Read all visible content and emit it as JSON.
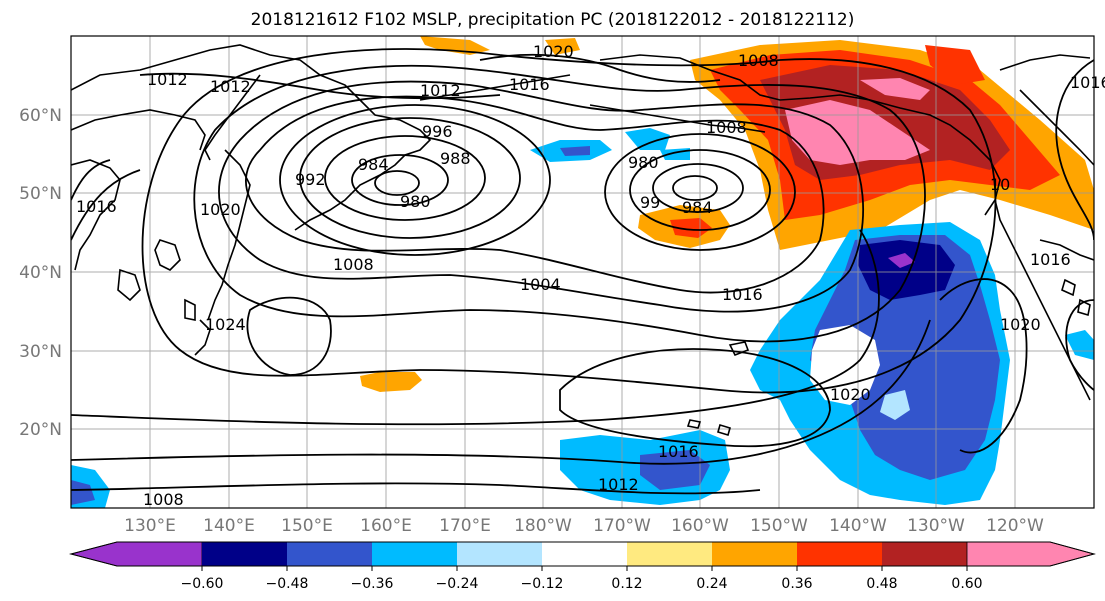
{
  "title": "2018121612 F102 MSLP, precipitation PC (2018122012 - 2018122112)",
  "lat_labels": [
    "60°N",
    "50°N",
    "40°N",
    "30°N",
    "20°N"
  ],
  "lon_labels": [
    "130°E",
    "140°E",
    "150°E",
    "160°E",
    "170°E",
    "180°W",
    "170°W",
    "160°W",
    "150°W",
    "140°W",
    "130°W",
    "120°W"
  ],
  "contour_labels": {
    "c1020a": "1020",
    "c1016a": "1016",
    "c1012a": "1012",
    "c1012b": "1012",
    "c1008a": "1008",
    "c996": "996",
    "c984a": "984",
    "c988": "988",
    "c980a": "980",
    "c992": "992",
    "c1020b": "1020",
    "c1016b": "1016",
    "c1008b": "1008",
    "c1004": "1004",
    "c1016c": "1016",
    "c1008c": "1008",
    "c984b": "984",
    "c99": "99",
    "c980b": "980",
    "c1020c": "1020",
    "c1016d": "1016",
    "c1020d": "1020",
    "c1016e": "1016",
    "c1012c": "1012",
    "c1008d": "1008",
    "c10": "10",
    "c1016f": "1016",
    "c1024": "1024",
    "c1012d": "1012"
  },
  "colorbar": {
    "colors": [
      "#9933cc",
      "#000088",
      "#3355cc",
      "#00bbff",
      "#b3e5ff",
      "#ffffff",
      "#ffea80",
      "#ffa500",
      "#ff3300",
      "#b22222",
      "#ff85b0"
    ],
    "ticks": [
      "−0.60",
      "−0.48",
      "−0.36",
      "−0.24",
      "−0.12",
      "0.12",
      "0.24",
      "0.36",
      "0.48",
      "0.60"
    ]
  }
}
